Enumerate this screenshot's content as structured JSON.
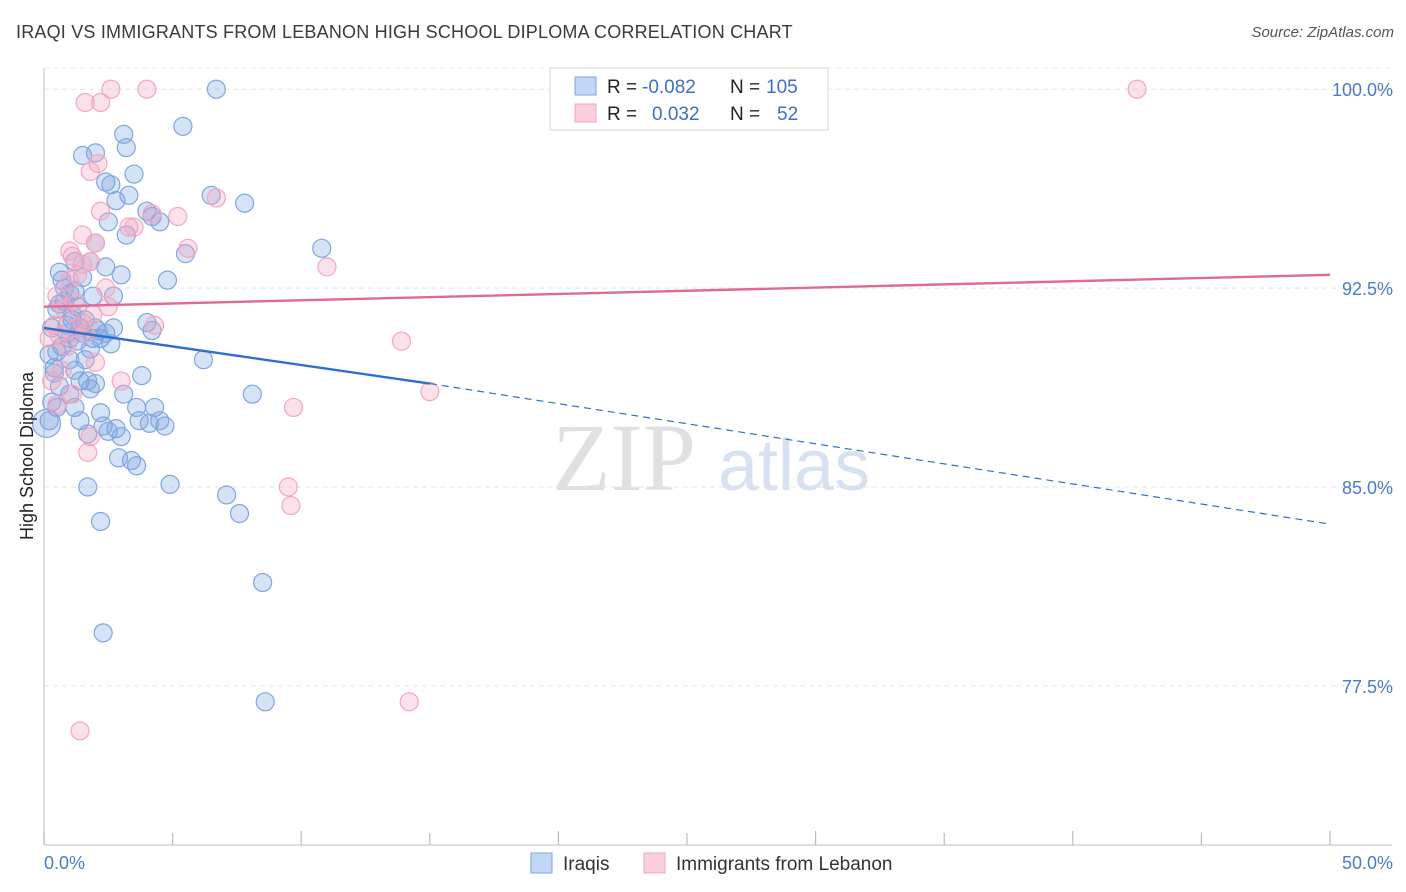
{
  "title": "IRAQI VS IMMIGRANTS FROM LEBANON HIGH SCHOOL DIPLOMA CORRELATION CHART",
  "source": "Source: ZipAtlas.com",
  "watermark": {
    "zip": "ZIP",
    "atlas": "atlas"
  },
  "chart_data": {
    "type": "scatter",
    "xlabel": "",
    "ylabel": "High School Diploma",
    "xlim": [
      0,
      50
    ],
    "ylim": [
      71.5,
      100.8
    ],
    "x_tick_labels": [
      "0.0%",
      "50.0%"
    ],
    "y_ticks": [
      77.5,
      85.0,
      92.5,
      100.0
    ],
    "y_tick_labels": [
      "77.5%",
      "85.0%",
      "92.5%",
      "100.0%"
    ],
    "legend": [
      {
        "r_label": "R =",
        "r_value": "-0.082",
        "n_label": "N =",
        "n_value": "105"
      },
      {
        "r_label": "R =",
        "r_value": "0.032",
        "n_label": "N =",
        "n_value": "52"
      }
    ],
    "series": [
      {
        "name": "Iraqis",
        "color": "#7ea6e0",
        "line_color": "#2f6fcc",
        "trend": {
          "x0": 0,
          "y0": 91.0,
          "x1": 15,
          "y1": 88.9,
          "dash_x1": 50,
          "dash_y1": 83.6
        },
        "points": [
          [
            0.5,
            91.7
          ],
          [
            0.4,
            89.3
          ],
          [
            0.2,
            87.5
          ],
          [
            0.6,
            91.9
          ],
          [
            0.8,
            92.5
          ],
          [
            1.0,
            92.3
          ],
          [
            1.2,
            92.4
          ],
          [
            0.9,
            91.1
          ],
          [
            1.3,
            90.5
          ],
          [
            1.5,
            90.8
          ],
          [
            0.7,
            90.3
          ],
          [
            1.1,
            91.3
          ],
          [
            1.4,
            91.0
          ],
          [
            0.3,
            88.2
          ],
          [
            0.5,
            90.1
          ],
          [
            1.6,
            89.8
          ],
          [
            1.8,
            88.7
          ],
          [
            2.0,
            88.9
          ],
          [
            1.7,
            89.0
          ],
          [
            2.2,
            90.6
          ],
          [
            2.4,
            90.8
          ],
          [
            2.6,
            90.4
          ],
          [
            1.9,
            90.6
          ],
          [
            2.1,
            90.9
          ],
          [
            1.0,
            88.5
          ],
          [
            1.2,
            88.0
          ],
          [
            1.4,
            87.5
          ],
          [
            2.3,
            87.3
          ],
          [
            2.5,
            87.1
          ],
          [
            2.8,
            87.2
          ],
          [
            1.7,
            87.0
          ],
          [
            3.0,
            86.9
          ],
          [
            2.9,
            86.1
          ],
          [
            3.4,
            86.0
          ],
          [
            3.6,
            85.8
          ],
          [
            1.7,
            85.0
          ],
          [
            2.2,
            83.7
          ],
          [
            2.3,
            79.5
          ],
          [
            0.6,
            93.1
          ],
          [
            1.2,
            93.5
          ],
          [
            1.5,
            92.9
          ],
          [
            1.8,
            93.5
          ],
          [
            2.4,
            93.3
          ],
          [
            2.7,
            92.2
          ],
          [
            2.0,
            94.2
          ],
          [
            2.5,
            95.0
          ],
          [
            2.8,
            95.8
          ],
          [
            3.3,
            96.0
          ],
          [
            2.4,
            96.5
          ],
          [
            3.5,
            96.8
          ],
          [
            3.2,
            97.8
          ],
          [
            3.1,
            98.3
          ],
          [
            2.0,
            97.6
          ],
          [
            1.5,
            97.5
          ],
          [
            2.6,
            96.4
          ],
          [
            3.2,
            94.5
          ],
          [
            4.0,
            95.4
          ],
          [
            4.2,
            95.2
          ],
          [
            4.5,
            95.0
          ],
          [
            4.8,
            92.8
          ],
          [
            5.5,
            93.8
          ],
          [
            4.0,
            91.2
          ],
          [
            4.2,
            90.9
          ],
          [
            3.8,
            89.2
          ],
          [
            3.1,
            88.5
          ],
          [
            3.6,
            88.0
          ],
          [
            4.3,
            88.0
          ],
          [
            4.5,
            87.5
          ],
          [
            3.7,
            87.5
          ],
          [
            4.1,
            87.4
          ],
          [
            4.7,
            87.3
          ],
          [
            4.9,
            85.1
          ],
          [
            5.4,
            98.6
          ],
          [
            6.5,
            96.0
          ],
          [
            6.7,
            100.0
          ],
          [
            7.8,
            95.7
          ],
          [
            6.2,
            89.8
          ],
          [
            8.1,
            88.5
          ],
          [
            7.1,
            84.7
          ],
          [
            7.6,
            84.0
          ],
          [
            8.5,
            81.4
          ],
          [
            8.6,
            76.9
          ],
          [
            10.8,
            94.0
          ],
          [
            3.0,
            93.0
          ],
          [
            0.8,
            92.0
          ],
          [
            1.1,
            91.5
          ],
          [
            1.3,
            91.8
          ],
          [
            0.9,
            90.8
          ],
          [
            1.6,
            91.3
          ],
          [
            2.0,
            91.0
          ],
          [
            0.4,
            89.5
          ],
          [
            0.6,
            88.8
          ],
          [
            1.0,
            89.8
          ],
          [
            0.3,
            91.0
          ],
          [
            0.2,
            90.0
          ],
          [
            1.4,
            89.0
          ],
          [
            2.2,
            87.8
          ],
          [
            1.9,
            92.2
          ],
          [
            0.7,
            92.8
          ],
          [
            1.2,
            89.4
          ],
          [
            1.0,
            90.6
          ],
          [
            2.7,
            91.0
          ],
          [
            0.5,
            88.0
          ],
          [
            1.8,
            90.2
          ],
          [
            0.1,
            87.4
          ]
        ]
      },
      {
        "name": "Immigrants from Lebanon",
        "color": "#f4a6bf",
        "line_color": "#e06a95",
        "trend": {
          "x0": 0,
          "y0": 91.8,
          "x1": 50,
          "y1": 93.0,
          "dash_x1": 50,
          "dash_y1": 93.0
        },
        "points": [
          [
            2.6,
            100.0
          ],
          [
            4.0,
            100.0
          ],
          [
            1.6,
            99.5
          ],
          [
            2.2,
            99.5
          ],
          [
            1.8,
            96.9
          ],
          [
            2.1,
            97.2
          ],
          [
            2.2,
            95.4
          ],
          [
            3.3,
            94.8
          ],
          [
            3.5,
            94.8
          ],
          [
            4.2,
            95.3
          ],
          [
            5.2,
            95.2
          ],
          [
            1.5,
            94.5
          ],
          [
            1.0,
            93.9
          ],
          [
            1.1,
            93.7
          ],
          [
            1.5,
            93.4
          ],
          [
            1.8,
            93.5
          ],
          [
            2.0,
            94.2
          ],
          [
            5.6,
            94.0
          ],
          [
            6.7,
            95.9
          ],
          [
            1.0,
            92.8
          ],
          [
            0.5,
            92.2
          ],
          [
            0.8,
            91.7
          ],
          [
            1.3,
            91.0
          ],
          [
            0.4,
            91.1
          ],
          [
            0.6,
            90.7
          ],
          [
            1.5,
            91.2
          ],
          [
            2.0,
            89.7
          ],
          [
            2.5,
            91.8
          ],
          [
            4.3,
            91.1
          ],
          [
            3.0,
            89.0
          ],
          [
            1.1,
            88.5
          ],
          [
            0.5,
            88.1
          ],
          [
            1.8,
            86.9
          ],
          [
            1.7,
            86.3
          ],
          [
            9.7,
            88.0
          ],
          [
            11.0,
            93.3
          ],
          [
            13.9,
            90.5
          ],
          [
            15.0,
            88.6
          ],
          [
            9.6,
            84.3
          ],
          [
            9.5,
            85.0
          ],
          [
            14.2,
            76.9
          ],
          [
            1.4,
            75.8
          ],
          [
            42.5,
            100.0
          ],
          [
            0.3,
            89.0
          ],
          [
            1.2,
            92.0
          ],
          [
            0.9,
            90.3
          ],
          [
            2.4,
            92.5
          ],
          [
            1.6,
            90.8
          ],
          [
            0.7,
            89.4
          ],
          [
            1.9,
            91.5
          ],
          [
            1.3,
            93.0
          ],
          [
            0.2,
            90.6
          ]
        ]
      }
    ]
  }
}
